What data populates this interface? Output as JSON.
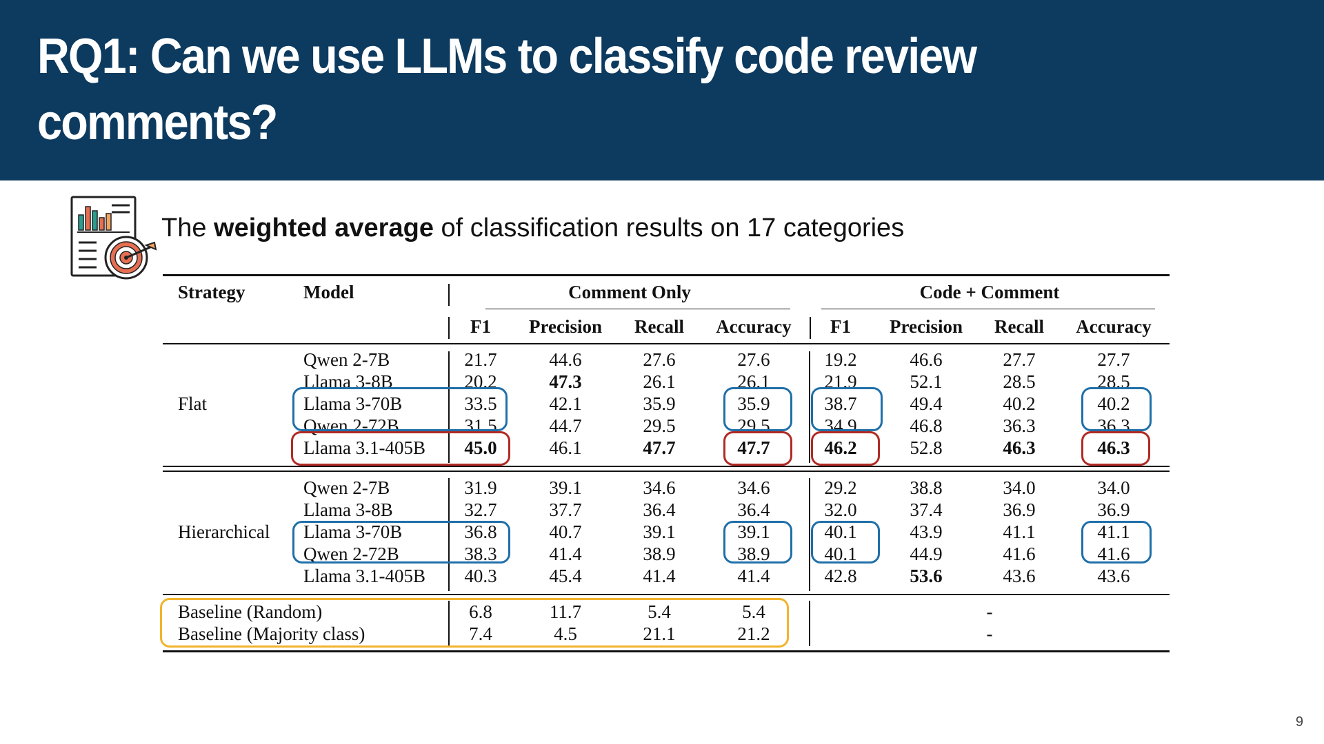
{
  "slide": {
    "title": "RQ1: Can we use LLMs to classify code review comments?",
    "subtitle_pre": "The ",
    "subtitle_bold": "weighted average",
    "subtitle_post": " of classification results on 17 categories",
    "page_number": "9",
    "icon": "report-target-icon"
  },
  "table": {
    "headers": {
      "strategy": "Strategy",
      "model": "Model",
      "group1": "Comment Only",
      "group2": "Code + Comment",
      "metrics": [
        "F1",
        "Precision",
        "Recall",
        "Accuracy"
      ]
    },
    "sections": [
      {
        "strategy": "Flat",
        "rows": [
          {
            "model": "Qwen 2-7B",
            "values": [
              "21.7",
              "44.6",
              "27.6",
              "27.6",
              "19.2",
              "46.6",
              "27.7",
              "27.7"
            ]
          },
          {
            "model": "Llama 3-8B",
            "values": [
              "20.2",
              "47.3",
              "26.1",
              "26.1",
              "21.9",
              "52.1",
              "28.5",
              "28.5"
            ]
          },
          {
            "model": "Llama 3-70B",
            "values": [
              "33.5",
              "42.1",
              "35.9",
              "35.9",
              "38.7",
              "49.4",
              "40.2",
              "40.2"
            ]
          },
          {
            "model": "Qwen 2-72B",
            "values": [
              "31.5",
              "44.7",
              "29.5",
              "29.5",
              "34.9",
              "46.8",
              "36.3",
              "36.3"
            ]
          },
          {
            "model": "Llama 3.1-405B",
            "values": [
              "45.0",
              "46.1",
              "47.7",
              "47.7",
              "46.2",
              "52.8",
              "46.3",
              "46.3"
            ]
          }
        ]
      },
      {
        "strategy": "Hierarchical",
        "rows": [
          {
            "model": "Qwen 2-7B",
            "values": [
              "31.9",
              "39.1",
              "34.6",
              "34.6",
              "29.2",
              "38.8",
              "34.0",
              "34.0"
            ]
          },
          {
            "model": "Llama 3-8B",
            "values": [
              "32.7",
              "37.7",
              "36.4",
              "36.4",
              "32.0",
              "37.4",
              "36.9",
              "36.9"
            ]
          },
          {
            "model": "Llama 3-70B",
            "values": [
              "36.8",
              "40.7",
              "39.1",
              "39.1",
              "40.1",
              "43.9",
              "41.1",
              "41.1"
            ]
          },
          {
            "model": "Qwen 2-72B",
            "values": [
              "38.3",
              "41.4",
              "38.9",
              "38.9",
              "40.1",
              "44.9",
              "41.6",
              "41.6"
            ]
          },
          {
            "model": "Llama 3.1-405B",
            "values": [
              "40.3",
              "45.4",
              "41.4",
              "41.4",
              "42.8",
              "53.6",
              "43.6",
              "43.6"
            ]
          }
        ]
      }
    ],
    "baselines": [
      {
        "label": "Baseline (Random)",
        "values": [
          "6.8",
          "11.7",
          "5.4",
          "5.4"
        ],
        "dash": "-"
      },
      {
        "label": "Baseline (Majority class)",
        "values": [
          "7.4",
          "4.5",
          "21.1",
          "21.2"
        ],
        "dash": "-"
      }
    ],
    "bold_cells": [
      "0-1-1",
      "0-4-0",
      "0-4-2",
      "0-4-3",
      "0-4-4",
      "0-4-6",
      "0-4-7",
      "1-4-5"
    ]
  },
  "colors": {
    "header_bg": "#0d3a5f",
    "highlight_blue": "#1f6fa8",
    "highlight_red": "#b22a24",
    "highlight_orange": "#f2b32c"
  }
}
